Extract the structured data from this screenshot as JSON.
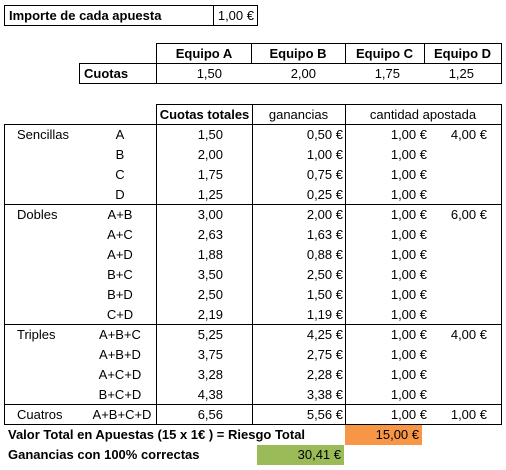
{
  "stake": {
    "label": "Importe de cada apuesta",
    "value": "1,00 €"
  },
  "teams": {
    "headers": [
      "Equipo A",
      "Equipo B",
      "Equipo C",
      "Equipo D"
    ],
    "row_label": "Cuotas",
    "odds": [
      "1,50",
      "2,00",
      "1,75",
      "1,25"
    ]
  },
  "table": {
    "col_odds": "Cuotas totales",
    "col_gains": "ganancias",
    "col_stake": "cantidad apostada",
    "groups": [
      {
        "name": "Sencillas",
        "total": "4,00 €",
        "rows": [
          {
            "combo": "A",
            "odds": "1,50",
            "gain": "0,50 €",
            "stake": "1,00 €"
          },
          {
            "combo": "B",
            "odds": "2,00",
            "gain": "1,00 €",
            "stake": "1,00 €"
          },
          {
            "combo": "C",
            "odds": "1,75",
            "gain": "0,75 €",
            "stake": "1,00 €"
          },
          {
            "combo": "D",
            "odds": "1,25",
            "gain": "0,25 €",
            "stake": "1,00 €"
          }
        ]
      },
      {
        "name": "Dobles",
        "total": "6,00 €",
        "rows": [
          {
            "combo": "A+B",
            "odds": "3,00",
            "gain": "2,00 €",
            "stake": "1,00 €"
          },
          {
            "combo": "A+C",
            "odds": "2,63",
            "gain": "1,63 €",
            "stake": "1,00 €"
          },
          {
            "combo": "A+D",
            "odds": "1,88",
            "gain": "0,88 €",
            "stake": "1,00 €"
          },
          {
            "combo": "B+C",
            "odds": "3,50",
            "gain": "2,50 €",
            "stake": "1,00 €"
          },
          {
            "combo": "B+D",
            "odds": "2,50",
            "gain": "1,50 €",
            "stake": "1,00 €"
          },
          {
            "combo": "C+D",
            "odds": "2,19",
            "gain": "1,19 €",
            "stake": "1,00 €"
          }
        ]
      },
      {
        "name": "Triples",
        "total": "4,00 €",
        "rows": [
          {
            "combo": "A+B+C",
            "odds": "5,25",
            "gain": "4,25 €",
            "stake": "1,00 €"
          },
          {
            "combo": "A+B+D",
            "odds": "3,75",
            "gain": "2,75 €",
            "stake": "1,00 €"
          },
          {
            "combo": "A+C+D",
            "odds": "3,28",
            "gain": "2,28 €",
            "stake": "1,00 €"
          },
          {
            "combo": "B+C+D",
            "odds": "4,38",
            "gain": "3,38 €",
            "stake": "1,00 €"
          }
        ]
      },
      {
        "name": "Cuatros",
        "total": "1,00 €",
        "rows": [
          {
            "combo": "A+B+C+D",
            "odds": "6,56",
            "gain": "5,56 €",
            "stake": "1,00 €"
          }
        ]
      }
    ]
  },
  "summary": {
    "total_label": "Valor Total en Apuestas (15 x 1€ ) = Riesgo Total",
    "total_value": "15,00 €",
    "gains_label": "Ganancias con 100% correctas",
    "gains_value": "30,41 €"
  },
  "colors": {
    "risk_fill": "#f79646",
    "gains_fill": "#9bbb59"
  }
}
